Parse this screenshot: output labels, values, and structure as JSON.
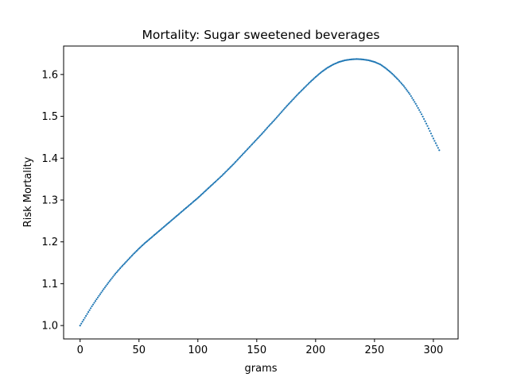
{
  "chart_data": {
    "type": "scatter",
    "title": "Mortality: Sugar sweetened beverages",
    "xlabel": "grams",
    "ylabel": "Risk Mortality",
    "xlim": [
      -14,
      321
    ],
    "ylim": [
      0.968,
      1.668
    ],
    "xticks": [
      0,
      50,
      100,
      150,
      200,
      250,
      300
    ],
    "yticks": [
      1.0,
      1.1,
      1.2,
      1.3,
      1.4,
      1.5,
      1.6
    ],
    "xtick_labels": [
      "0",
      "50",
      "100",
      "150",
      "200",
      "250",
      "300"
    ],
    "ytick_labels": [
      "1.0",
      "1.1",
      "1.2",
      "1.3",
      "1.4",
      "1.5",
      "1.6"
    ],
    "grid": false,
    "marker_color": "#1f77b4",
    "series": [
      {
        "x": [
          0,
          5,
          10,
          15,
          20,
          25,
          30,
          35,
          40,
          45,
          50,
          55,
          60,
          65,
          70,
          75,
          80,
          85,
          90,
          95,
          100,
          105,
          110,
          115,
          120,
          125,
          130,
          135,
          140,
          145,
          150,
          155,
          160,
          165,
          170,
          175,
          180,
          185,
          190,
          195,
          200,
          205,
          210,
          215,
          220,
          225,
          230,
          235,
          240,
          245,
          250,
          255,
          260,
          265,
          270,
          275,
          280,
          285,
          290,
          295,
          300,
          305
        ],
        "y": [
          1.0,
          1.023,
          1.046,
          1.067,
          1.087,
          1.106,
          1.124,
          1.14,
          1.155,
          1.17,
          1.184,
          1.197,
          1.209,
          1.221,
          1.233,
          1.245,
          1.257,
          1.269,
          1.281,
          1.293,
          1.305,
          1.318,
          1.331,
          1.344,
          1.357,
          1.371,
          1.385,
          1.4,
          1.415,
          1.43,
          1.445,
          1.46,
          1.476,
          1.491,
          1.507,
          1.523,
          1.538,
          1.553,
          1.567,
          1.581,
          1.594,
          1.606,
          1.616,
          1.624,
          1.63,
          1.634,
          1.636,
          1.637,
          1.636,
          1.634,
          1.63,
          1.624,
          1.614,
          1.602,
          1.588,
          1.572,
          1.553,
          1.53,
          1.505,
          1.477,
          1.447,
          1.419
        ]
      }
    ]
  }
}
